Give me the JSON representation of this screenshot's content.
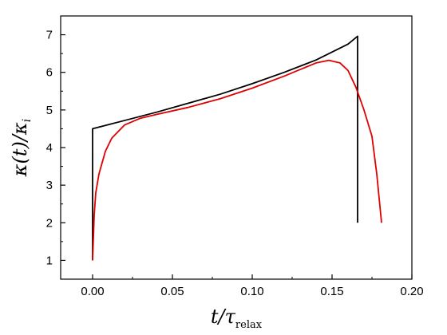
{
  "chart_data": {
    "type": "line",
    "title": "",
    "xlabel": "t/τ",
    "xlabel_sub": "relax",
    "ylabel": "κ(t)/κ",
    "ylabel_sub": "i",
    "xlim": [
      -0.02,
      0.2
    ],
    "ylim": [
      0.5,
      7.5
    ],
    "xticks": [
      0.0,
      0.05,
      0.1,
      0.15,
      0.2
    ],
    "xtick_labels": [
      "0.00",
      "0.05",
      "0.10",
      "0.15",
      "0.20"
    ],
    "yticks": [
      1,
      2,
      3,
      4,
      5,
      6,
      7
    ],
    "ytick_labels": [
      "1",
      "2",
      "3",
      "4",
      "5",
      "6",
      "7"
    ],
    "grid": false,
    "series": [
      {
        "color": "#000000",
        "x": [
          0.0,
          0.0,
          0.02,
          0.04,
          0.06,
          0.08,
          0.1,
          0.12,
          0.14,
          0.16,
          0.166,
          0.166
        ],
        "y": [
          1.0,
          4.5,
          4.72,
          4.94,
          5.18,
          5.42,
          5.7,
          6.0,
          6.33,
          6.75,
          6.96,
          2.0
        ]
      },
      {
        "color": "#e00000",
        "x": [
          0.0,
          0.0005,
          0.001,
          0.002,
          0.004,
          0.008,
          0.012,
          0.02,
          0.03,
          0.04,
          0.06,
          0.08,
          0.1,
          0.12,
          0.14,
          0.148,
          0.155,
          0.16,
          0.165,
          0.17,
          0.175,
          0.178,
          0.181
        ],
        "y": [
          1.0,
          1.6,
          2.2,
          2.8,
          3.3,
          3.9,
          4.25,
          4.6,
          4.78,
          4.88,
          5.07,
          5.3,
          5.58,
          5.9,
          6.25,
          6.32,
          6.25,
          6.05,
          5.6,
          5.0,
          4.3,
          3.3,
          2.0
        ]
      }
    ]
  }
}
